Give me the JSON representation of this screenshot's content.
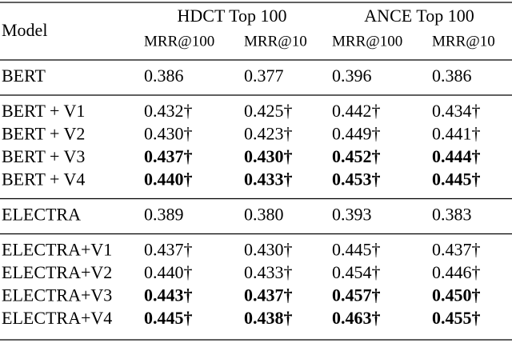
{
  "table": {
    "header": {
      "model": "Model",
      "groups": [
        "HDCT Top 100",
        "ANCE Top 100"
      ],
      "metrics": [
        "MRR@100",
        "MRR@10",
        "MRR@100",
        "MRR@10"
      ]
    },
    "sections": [
      [
        {
          "model": "BERT",
          "cells": [
            "0.386",
            "0.377",
            "0.396",
            "0.386"
          ],
          "bold": [
            false,
            false,
            false,
            false
          ]
        }
      ],
      [
        {
          "model": "BERT + V1",
          "cells": [
            "0.432†",
            "0.425†",
            "0.442†",
            "0.434†"
          ],
          "bold": [
            false,
            false,
            false,
            false
          ]
        },
        {
          "model": "BERT + V2",
          "cells": [
            "0.430†",
            "0.423†",
            "0.449†",
            "0.441†"
          ],
          "bold": [
            false,
            false,
            false,
            false
          ]
        },
        {
          "model": "BERT + V3",
          "cells": [
            "0.437†",
            "0.430†",
            "0.452†",
            "0.444†"
          ],
          "bold": [
            true,
            true,
            true,
            true
          ]
        },
        {
          "model": "BERT + V4",
          "cells": [
            "0.440†",
            "0.433†",
            "0.453†",
            "0.445†"
          ],
          "bold": [
            true,
            true,
            true,
            true
          ]
        }
      ],
      [
        {
          "model": "ELECTRA",
          "cells": [
            "0.389",
            "0.380",
            "0.393",
            "0.383"
          ],
          "bold": [
            false,
            false,
            false,
            false
          ]
        }
      ],
      [
        {
          "model": "ELECTRA+V1",
          "cells": [
            "0.437†",
            "0.430†",
            "0.445†",
            "0.437†"
          ],
          "bold": [
            false,
            false,
            false,
            false
          ]
        },
        {
          "model": "ELECTRA+V2",
          "cells": [
            "0.440†",
            "0.433†",
            "0.454†",
            "0.446†"
          ],
          "bold": [
            false,
            false,
            false,
            false
          ]
        },
        {
          "model": "ELECTRA+V3",
          "cells": [
            "0.443†",
            "0.437†",
            "0.457†",
            "0.450†"
          ],
          "bold": [
            true,
            true,
            true,
            true
          ]
        },
        {
          "model": "ELECTRA+V4",
          "cells": [
            "0.445†",
            "0.438†",
            "0.463†",
            "0.455†"
          ],
          "bold": [
            true,
            true,
            true,
            true
          ]
        }
      ]
    ]
  }
}
